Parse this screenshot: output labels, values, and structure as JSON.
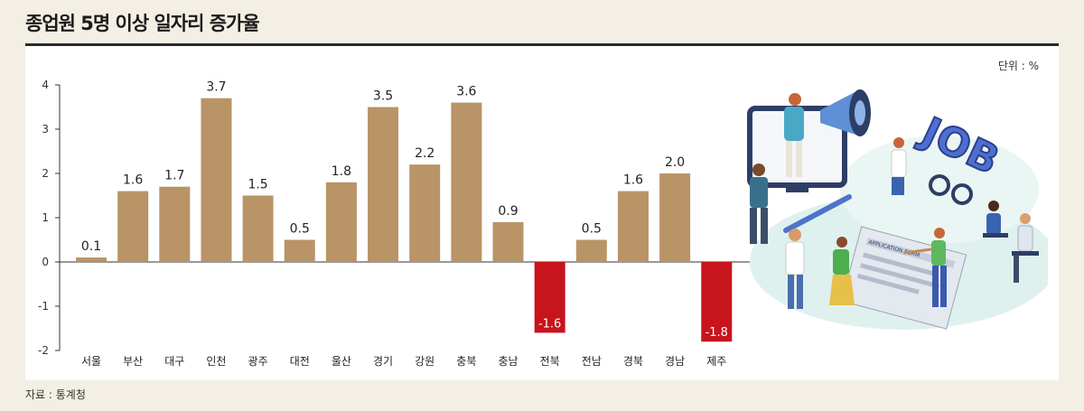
{
  "title": "종업원 5명 이상 일자리 증가율",
  "unit_label": "단위 : %",
  "source": "자료 : 통계청",
  "illustration": {
    "sign_text": "JOB",
    "form_text": "APPLICATION FORM"
  },
  "colors": {
    "positive": "#b99467",
    "negative": "#c8141c",
    "background": "#f3efe4",
    "panel": "#ffffff"
  },
  "chart_data": {
    "type": "bar",
    "categories": [
      "서울",
      "부산",
      "대구",
      "인천",
      "광주",
      "대전",
      "울산",
      "경기",
      "강원",
      "충북",
      "충남",
      "전북",
      "전남",
      "경북",
      "경남",
      "제주"
    ],
    "values": [
      0.1,
      1.6,
      1.7,
      3.7,
      1.5,
      0.5,
      1.8,
      3.5,
      2.2,
      3.6,
      0.9,
      -1.6,
      0.5,
      1.6,
      2.0,
      -1.8
    ],
    "value_labels": [
      "0.1",
      "1.6",
      "1.7",
      "3.7",
      "1.5",
      "0.5",
      "1.8",
      "3.5",
      "2.2",
      "3.6",
      "0.9",
      "-1.6",
      "0.5",
      "1.6",
      "2.0",
      "-1.8"
    ],
    "yticks": [
      "4",
      "3",
      "2",
      "1",
      "0",
      "-1",
      "-2"
    ],
    "ylim": [
      -2,
      4
    ],
    "grid": false
  }
}
